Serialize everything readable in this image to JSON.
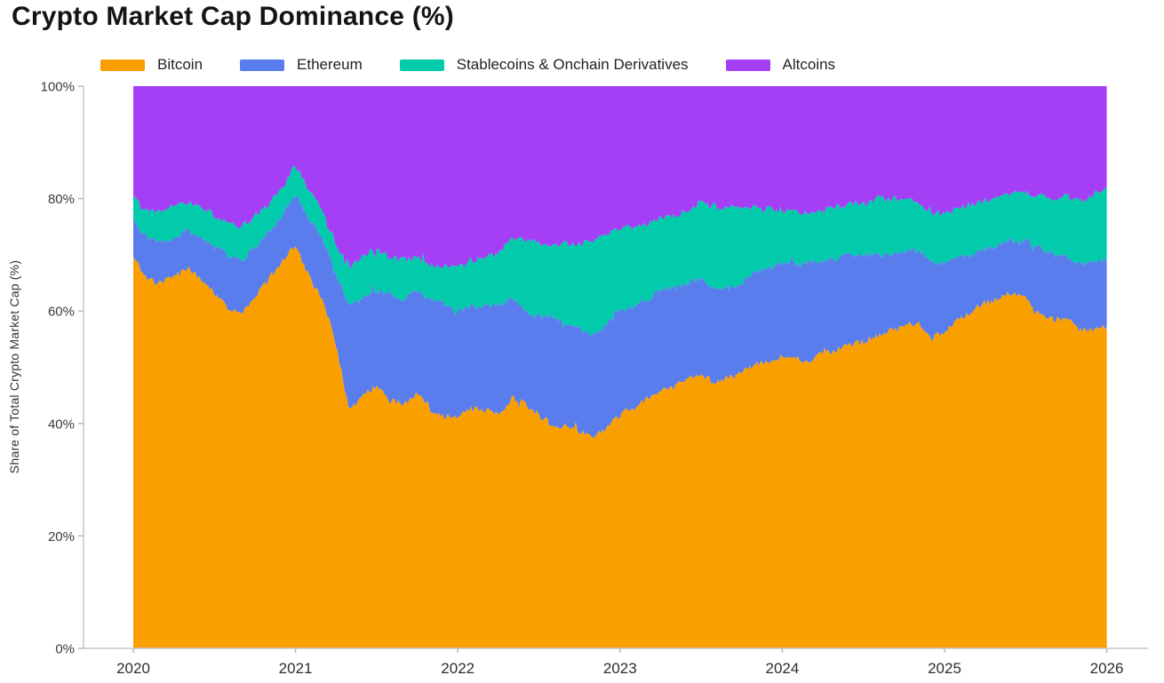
{
  "title": "Crypto Market Cap Dominance (%)",
  "axis": {
    "line_color": "#c9c9c9",
    "tick_color": "#b5b5b5",
    "tick_text_color": "#3a3a3a"
  },
  "chart_data": {
    "type": "area",
    "stacked": true,
    "title": "Crypto Market Cap Dominance (%)",
    "xlabel": "",
    "ylabel": "Share of Total Crypto Market Cap (%)",
    "legend_position": "top",
    "grid": false,
    "ylim": [
      0,
      100
    ],
    "y_ticks": [
      "0%",
      "20%",
      "40%",
      "60%",
      "80%",
      "100%"
    ],
    "y_tick_values": [
      0,
      20,
      40,
      60,
      80,
      100
    ],
    "x_ticks": [
      "2020",
      "2021",
      "2022",
      "2023",
      "2024",
      "2025",
      "2026"
    ],
    "x_tick_values": [
      2020,
      2021,
      2022,
      2023,
      2024,
      2025,
      2026
    ],
    "x_start": 2020.0,
    "x_step": 0.0833333,
    "sampling": "monthly, Jan 2020 through Jan 2026 (percent of total crypto market cap)",
    "series": [
      {
        "name": "Bitcoin",
        "color": "#FA9F00",
        "values": [
          70,
          65.5,
          65,
          66,
          67.5,
          65.5,
          63,
          60.5,
          59.5,
          62.5,
          65.5,
          69,
          71.5,
          66,
          62,
          54,
          42,
          45.5,
          46.5,
          44,
          43.5,
          45.5,
          42.5,
          41.5,
          41,
          42.5,
          42.5,
          41.5,
          44.5,
          43.5,
          41.5,
          39.5,
          39.5,
          38.5,
          38,
          39,
          41.5,
          42.5,
          44.5,
          46,
          46.5,
          48,
          48.5,
          47.5,
          48,
          49,
          50.5,
          51,
          52,
          51.5,
          51,
          52.5,
          53,
          54,
          54.5,
          55.5,
          56.5,
          57.5,
          58,
          55,
          56.5,
          58.5,
          60,
          61.5,
          62,
          63.5,
          62.5,
          59.5,
          58.5,
          58.5,
          57,
          56.5,
          57
        ]
      },
      {
        "name": "Ethereum",
        "color": "#5A7DED",
        "values": [
          6,
          7.5,
          7,
          7,
          7,
          7.5,
          8.5,
          9.5,
          9.5,
          9,
          8.5,
          8,
          9,
          10.5,
          11,
          12.5,
          19,
          17,
          17,
          19,
          18.5,
          18,
          19.5,
          20,
          19,
          18.5,
          18.5,
          19.5,
          18,
          16.5,
          17.5,
          19.5,
          18.5,
          18.5,
          18,
          18.5,
          18.5,
          18,
          17.5,
          18,
          17.5,
          17,
          17.5,
          16.5,
          16,
          16,
          16.5,
          16.5,
          16.5,
          17,
          17.5,
          16.5,
          16.5,
          16,
          15.5,
          14.5,
          13.5,
          13,
          13,
          13.5,
          12,
          11,
          10,
          9.5,
          10,
          9,
          10,
          12,
          11.5,
          11,
          11.5,
          12,
          12
        ]
      },
      {
        "name": "Stablecoins & Onchain Derivatives",
        "color": "#01CBAB",
        "values": [
          4.5,
          4.5,
          6,
          5.5,
          5,
          5.5,
          5.5,
          5.5,
          6,
          5.5,
          5,
          4.5,
          5.5,
          5,
          5,
          5,
          7,
          7.5,
          7.5,
          6.5,
          7,
          6,
          6,
          6.5,
          7.5,
          8,
          8.5,
          9,
          10.5,
          12.5,
          13,
          12.5,
          14,
          15,
          16.5,
          16.5,
          15,
          14,
          13.5,
          12.5,
          13,
          13,
          13.5,
          14.5,
          14.5,
          13,
          11.5,
          10.5,
          9.5,
          9,
          8.5,
          9,
          9,
          9,
          9,
          10,
          10,
          9.5,
          8.5,
          9,
          9,
          9,
          9,
          8.5,
          8.5,
          8.5,
          8.5,
          9,
          10,
          11,
          11,
          12,
          13
        ]
      },
      {
        "name": "Altcoins",
        "color": "#A43FF6",
        "values": [
          19.5,
          22.5,
          22,
          21.5,
          20.5,
          21.5,
          23,
          24.5,
          25,
          23,
          21,
          18.5,
          14,
          18.5,
          22,
          28.5,
          32,
          30,
          29,
          30.5,
          31,
          30.5,
          32,
          32,
          32.5,
          31,
          30.5,
          30,
          27,
          27.5,
          28,
          28.5,
          28,
          28,
          27.5,
          26,
          25,
          25.5,
          24.5,
          23.5,
          23,
          22,
          20.5,
          21.5,
          21.5,
          22,
          21.5,
          22,
          22,
          22.5,
          23,
          22,
          21.5,
          21,
          21,
          20,
          20,
          20,
          20.5,
          22.5,
          22.5,
          21.5,
          21,
          20.5,
          19.5,
          19,
          19,
          19.5,
          20,
          19.5,
          20.5,
          19.5,
          18
        ]
      }
    ]
  }
}
